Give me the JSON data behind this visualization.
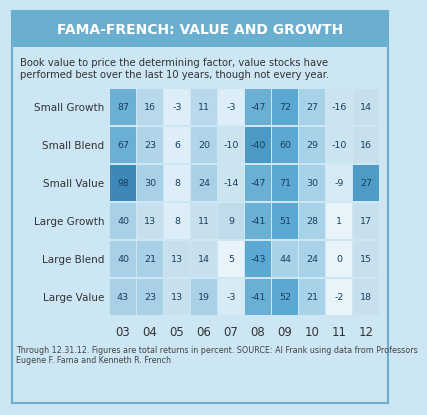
{
  "title": "FAMA-FRENCH: VALUE AND GROWTH",
  "subtitle1": "Book value to price the determining factor, value stocks have",
  "subtitle2": "performed best over the last 10 years, though not every year.",
  "footnote1": "Through 12.31.12. Figures are total returns in percent. SOURCE: Al Frank using data from Professors",
  "footnote2": "Eugene F. Fama and Kenneth R. French",
  "row_labels": [
    "Small Growth",
    "Small Blend",
    "Small Value",
    "Large Growth",
    "Large Blend",
    "Large Value"
  ],
  "col_labels": [
    "03",
    "04",
    "05",
    "06",
    "07",
    "08",
    "09",
    "10",
    "11",
    "12"
  ],
  "values": [
    [
      87,
      16,
      -3,
      11,
      -3,
      -47,
      72,
      27,
      -16,
      14
    ],
    [
      67,
      23,
      6,
      20,
      -10,
      -40,
      60,
      29,
      -10,
      16
    ],
    [
      98,
      30,
      8,
      24,
      -14,
      -47,
      71,
      30,
      -9,
      27
    ],
    [
      40,
      13,
      8,
      11,
      9,
      -41,
      51,
      28,
      1,
      17
    ],
    [
      40,
      21,
      13,
      14,
      5,
      -43,
      44,
      24,
      0,
      15
    ],
    [
      43,
      23,
      13,
      19,
      -3,
      -41,
      52,
      21,
      -2,
      18
    ]
  ],
  "cell_colors": [
    [
      "#6aafd4",
      "#b8d9ec",
      "#deeef8",
      "#b8d9ec",
      "#deeef8",
      "#6aafd4",
      "#5ba8d2",
      "#a8d2e8",
      "#cce3f0",
      "#c8e0ee"
    ],
    [
      "#6aafd4",
      "#b0d4e8",
      "#deeef8",
      "#b0d4e8",
      "#cce3f0",
      "#4a9ac4",
      "#5ba8d2",
      "#a8d2e8",
      "#cce3f0",
      "#c8e0ee"
    ],
    [
      "#3d88b8",
      "#a8d0e6",
      "#deeef8",
      "#a8d0e6",
      "#cce3f0",
      "#6aafd4",
      "#5ba8d2",
      "#a8d2e8",
      "#d8eaf4",
      "#4e9cc6"
    ],
    [
      "#a8d0e6",
      "#c8e0ee",
      "#deeef8",
      "#c8e0ee",
      "#c0dcea",
      "#6aafd4",
      "#5ba8d2",
      "#a8d2e8",
      "#e8f4fa",
      "#c8e0ee"
    ],
    [
      "#a8d0e6",
      "#a8d0e6",
      "#c8e0ee",
      "#c8e0ee",
      "#e8f4fa",
      "#5ba8d2",
      "#a8d2e8",
      "#a8d2e8",
      "#e8f4fa",
      "#c8e0ee"
    ],
    [
      "#a8d0e6",
      "#a8d0e6",
      "#c8e0ee",
      "#a8d0e6",
      "#d8eaf4",
      "#6aafd4",
      "#5ba8d2",
      "#a8d2e8",
      "#e8f4fa",
      "#c8e0ee"
    ]
  ],
  "bg_color": "#cce6f4",
  "title_bg": "#6aafcf",
  "title_color": "#ffffff",
  "border_color": "#6aafcf"
}
